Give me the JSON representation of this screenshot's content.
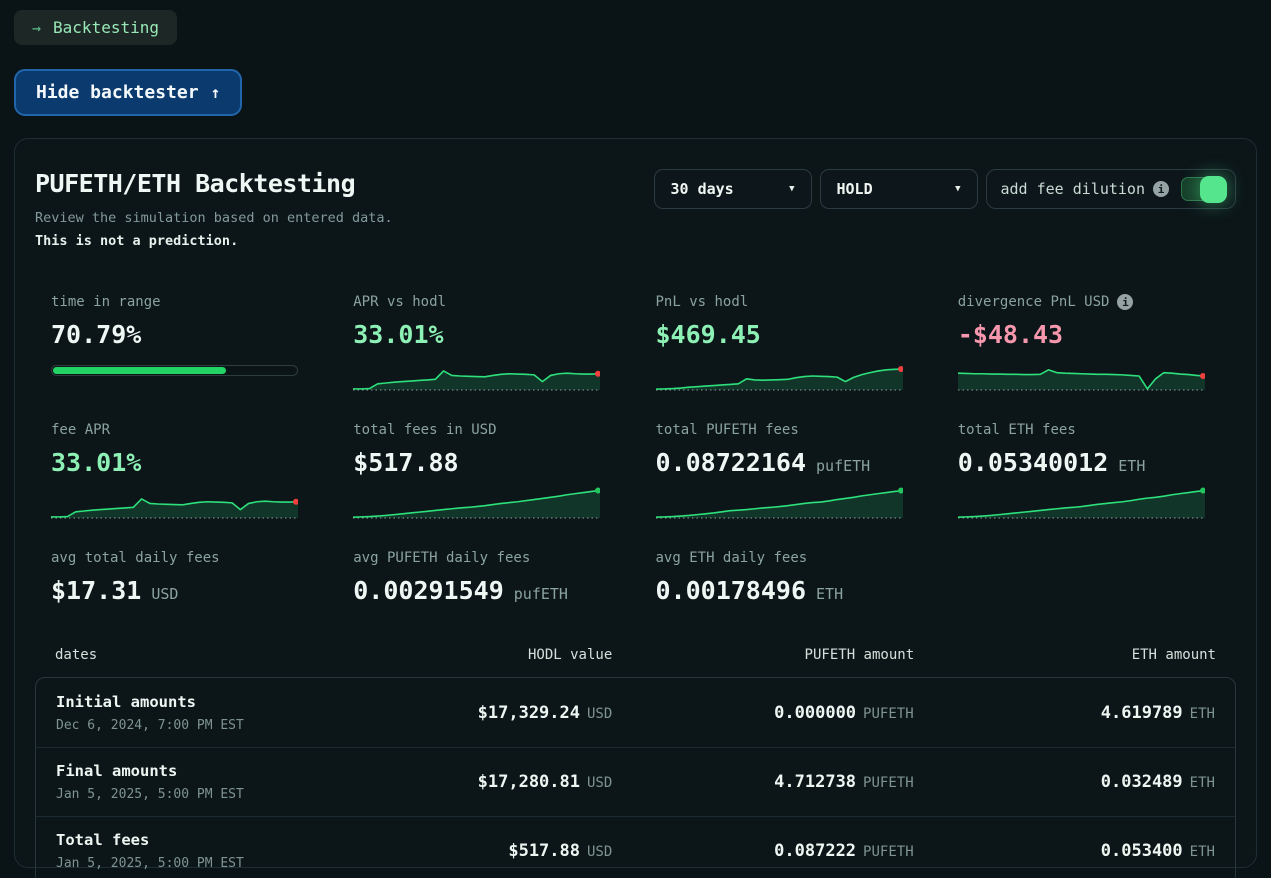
{
  "icons": {
    "arrow_right": "→",
    "arrow_up": "↑",
    "caret_down": "▼",
    "info": "i"
  },
  "colors": {
    "spark_line": "#2ee07c",
    "spark_fill": "rgba(46,224,133,0.16)",
    "baseline": "#9db3ad",
    "dot_red": "#f43f3f",
    "dot_green": "#22c55e",
    "progress_fill": "#22d366",
    "accent_green": "#8df0b5",
    "accent_pink": "#f797ad"
  },
  "breadcrumb": {
    "label": "Backtesting"
  },
  "hide_button": {
    "label": "Hide backtester"
  },
  "card": {
    "title": "PUFETH/ETH Backtesting",
    "subtitle": "Review the simulation based on entered data.",
    "disclaimer": "This is not a prediction."
  },
  "controls": {
    "period": "30 days",
    "strategy": "HOLD",
    "fee_dilution_label": "add fee dilution",
    "fee_dilution_on": true
  },
  "stats": [
    {
      "id": "time-in-range",
      "label": "time in range",
      "value": "70.79%",
      "value_color": "white",
      "chart": {
        "type": "progress",
        "percent": 70.79
      }
    },
    {
      "id": "apr-vs-hodl",
      "label": "APR vs hodl",
      "value": "33.01%",
      "value_color": "green",
      "chart": {
        "type": "sparkline",
        "dot": "red",
        "points": [
          0.04,
          0.04,
          0.05,
          0.22,
          0.25,
          0.28,
          0.3,
          0.32,
          0.34,
          0.36,
          0.38,
          0.68,
          0.52,
          0.5,
          0.49,
          0.48,
          0.47,
          0.52,
          0.56,
          0.58,
          0.57,
          0.56,
          0.54,
          0.3,
          0.52,
          0.58,
          0.6,
          0.58,
          0.57,
          0.57,
          0.58
        ]
      }
    },
    {
      "id": "pnl-vs-hodl",
      "label": "PnL vs hodl",
      "value": "$469.45",
      "value_color": "green",
      "chart": {
        "type": "sparkline",
        "dot": "red",
        "points": [
          0.03,
          0.04,
          0.05,
          0.07,
          0.1,
          0.12,
          0.14,
          0.16,
          0.18,
          0.2,
          0.22,
          0.4,
          0.36,
          0.35,
          0.36,
          0.37,
          0.38,
          0.44,
          0.48,
          0.5,
          0.49,
          0.48,
          0.46,
          0.3,
          0.45,
          0.55,
          0.62,
          0.68,
          0.72,
          0.74,
          0.75
        ]
      }
    },
    {
      "id": "divergence-pnl-usd",
      "label": "divergence PnL USD",
      "info": true,
      "value": "-$48.43",
      "value_color": "pink",
      "chart": {
        "type": "sparkline",
        "dot": "red",
        "points": [
          0.6,
          0.59,
          0.58,
          0.58,
          0.57,
          0.57,
          0.56,
          0.56,
          0.55,
          0.55,
          0.56,
          0.72,
          0.62,
          0.6,
          0.59,
          0.58,
          0.57,
          0.56,
          0.56,
          0.55,
          0.54,
          0.52,
          0.5,
          0.04,
          0.4,
          0.62,
          0.6,
          0.57,
          0.55,
          0.52,
          0.5
        ]
      }
    },
    {
      "id": "fee-apr",
      "label": "fee APR",
      "value": "33.01%",
      "value_color": "green",
      "chart": {
        "type": "sparkline",
        "dot": "red",
        "points": [
          0.04,
          0.04,
          0.05,
          0.22,
          0.25,
          0.28,
          0.3,
          0.32,
          0.34,
          0.36,
          0.38,
          0.68,
          0.52,
          0.5,
          0.49,
          0.48,
          0.47,
          0.52,
          0.56,
          0.58,
          0.57,
          0.56,
          0.54,
          0.3,
          0.52,
          0.58,
          0.6,
          0.58,
          0.57,
          0.57,
          0.58
        ]
      }
    },
    {
      "id": "total-fees-usd",
      "label": "total fees in USD",
      "value": "$517.88",
      "value_color": "white",
      "chart": {
        "type": "sparkline",
        "dot": "green",
        "points": [
          0.03,
          0.04,
          0.05,
          0.07,
          0.09,
          0.12,
          0.15,
          0.18,
          0.21,
          0.24,
          0.27,
          0.3,
          0.33,
          0.36,
          0.38,
          0.41,
          0.44,
          0.48,
          0.52,
          0.55,
          0.58,
          0.62,
          0.66,
          0.7,
          0.74,
          0.78,
          0.83,
          0.87,
          0.91,
          0.95,
          0.98
        ]
      }
    },
    {
      "id": "total-pufeth-fees",
      "label": "total PUFETH fees",
      "value": "0.08722164",
      "unit": "pufETH",
      "value_color": "white",
      "chart": {
        "type": "sparkline",
        "dot": "green",
        "points": [
          0.03,
          0.04,
          0.05,
          0.07,
          0.09,
          0.12,
          0.15,
          0.18,
          0.22,
          0.26,
          0.28,
          0.3,
          0.33,
          0.36,
          0.38,
          0.41,
          0.44,
          0.48,
          0.52,
          0.55,
          0.57,
          0.61,
          0.66,
          0.7,
          0.74,
          0.79,
          0.83,
          0.87,
          0.91,
          0.95,
          0.98
        ]
      }
    },
    {
      "id": "total-eth-fees",
      "label": "total ETH fees",
      "value": "0.05340012",
      "unit": "ETH",
      "value_color": "white",
      "chart": {
        "type": "sparkline",
        "dot": "green",
        "points": [
          0.03,
          0.04,
          0.05,
          0.07,
          0.09,
          0.12,
          0.15,
          0.18,
          0.21,
          0.24,
          0.27,
          0.3,
          0.33,
          0.36,
          0.38,
          0.41,
          0.45,
          0.49,
          0.52,
          0.55,
          0.58,
          0.62,
          0.67,
          0.71,
          0.74,
          0.78,
          0.83,
          0.87,
          0.91,
          0.95,
          0.98
        ]
      }
    },
    {
      "id": "avg-total-daily-fees",
      "label": "avg total daily fees",
      "value": "$17.31",
      "unit": "USD",
      "value_color": "white"
    },
    {
      "id": "avg-pufeth-daily-fees",
      "label": "avg PUFETH daily fees",
      "value": "0.00291549",
      "unit": "pufETH",
      "value_color": "white"
    },
    {
      "id": "avg-eth-daily-fees",
      "label": "avg ETH daily fees",
      "value": "0.00178496",
      "unit": "ETH",
      "value_color": "white"
    }
  ],
  "table": {
    "headers": [
      "dates",
      "HODL value",
      "PUFETH amount",
      "ETH amount"
    ],
    "rows": [
      {
        "id": "initial-amounts",
        "name": "Initial amounts",
        "date": "Dec 6, 2024, 7:00 PM EST",
        "cells": [
          {
            "value": "$17,329.24",
            "unit": "USD"
          },
          {
            "value": "0.000000",
            "unit": "PUFETH"
          },
          {
            "value": "4.619789",
            "unit": "ETH"
          }
        ]
      },
      {
        "id": "final-amounts",
        "name": "Final amounts",
        "date": "Jan 5, 2025, 5:00 PM EST",
        "cells": [
          {
            "value": "$17,280.81",
            "unit": "USD"
          },
          {
            "value": "4.712738",
            "unit": "PUFETH"
          },
          {
            "value": "0.032489",
            "unit": "ETH"
          }
        ]
      },
      {
        "id": "total-fees",
        "name": "Total fees",
        "date": "Jan 5, 2025, 5:00 PM EST",
        "cells": [
          {
            "value": "$517.88",
            "unit": "USD"
          },
          {
            "value": "0.087222",
            "unit": "PUFETH"
          },
          {
            "value": "0.053400",
            "unit": "ETH"
          }
        ]
      }
    ]
  }
}
